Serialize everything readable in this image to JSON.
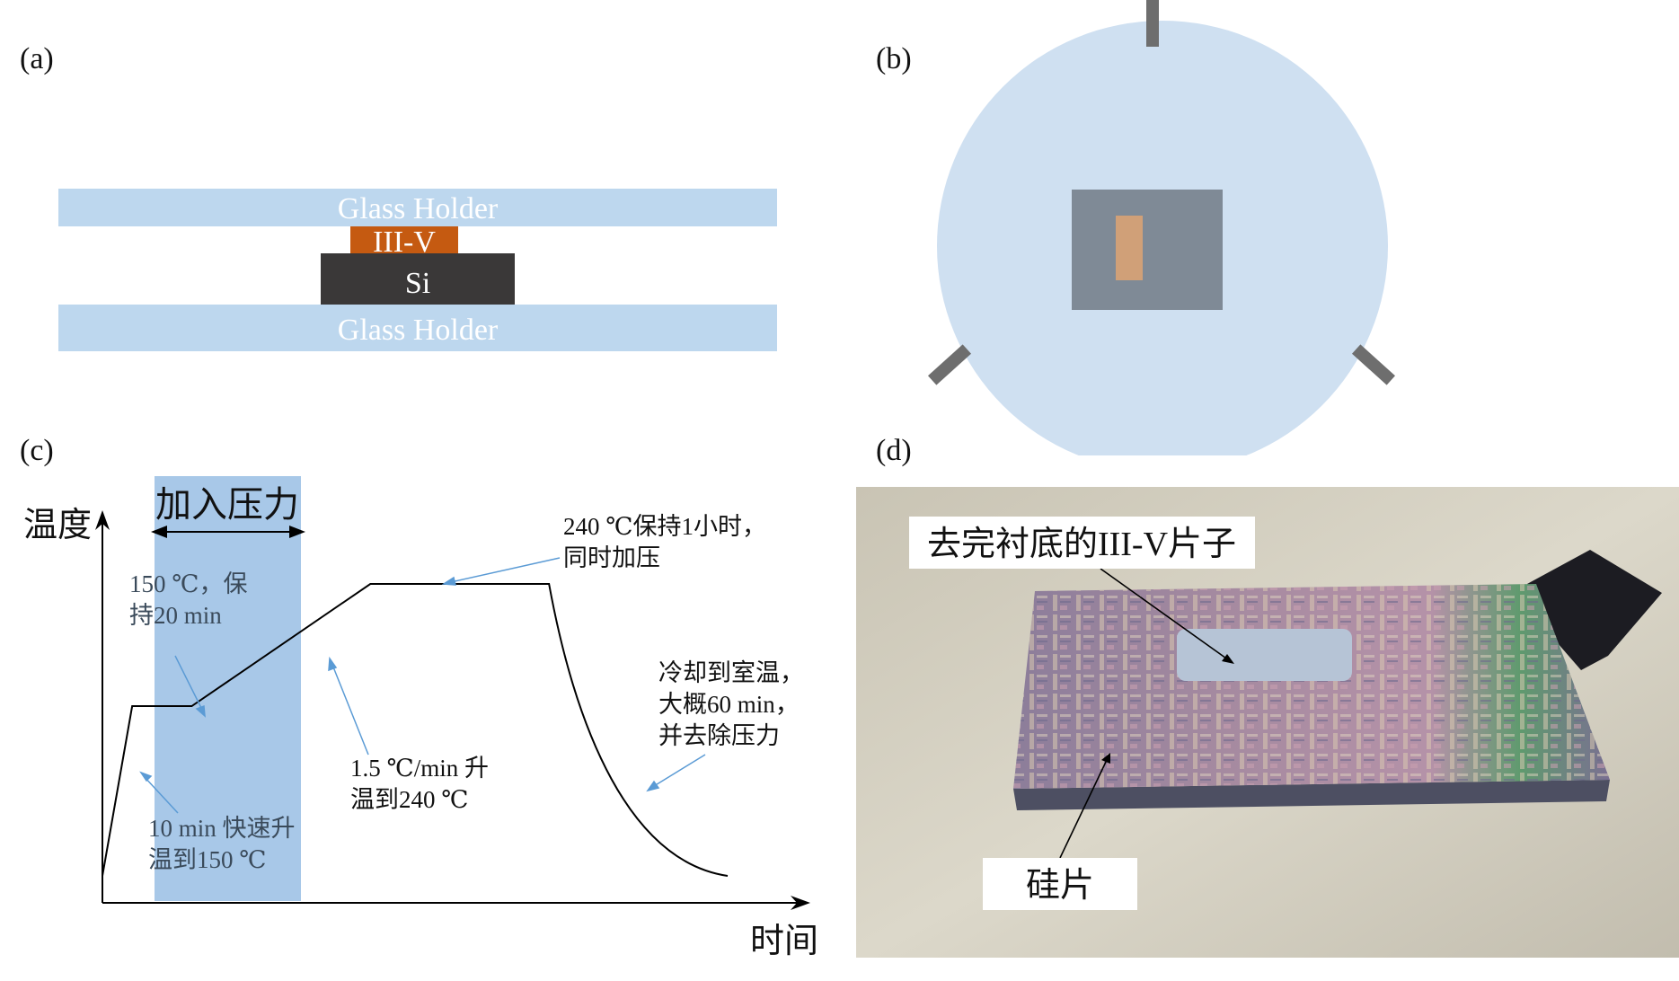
{
  "panel_a": {
    "letter": "(a)",
    "top_holder_label": "Glass Holder",
    "iii_v_label": "III-V",
    "si_label": "Si",
    "bottom_holder_label": "Glass Holder"
  },
  "panel_b": {
    "letter": "(b)"
  },
  "panel_c": {
    "letter": "(c)",
    "y_axis_label": "温度",
    "x_axis_label": "时间",
    "pressure_label": "加入压力",
    "ann_ramp1": [
      "10 min 快速升",
      "温到150 ℃"
    ],
    "ann_hold150": [
      "150 ℃，保",
      "持20 min"
    ],
    "ann_ramp2": [
      "1.5 ℃/min 升",
      "温到240 ℃"
    ],
    "ann_hold240": [
      "240 ℃保持1小时，",
      "同时加压"
    ],
    "ann_cool": [
      "冷却到室温，",
      "大概60 min，",
      "并去除压力"
    ],
    "chart_data": {
      "type": "line",
      "xlabel": "时间",
      "ylabel": "温度",
      "x_unit": "min",
      "y_unit": "℃",
      "points": [
        {
          "t": 0,
          "T": 25
        },
        {
          "t": 10,
          "T": 150
        },
        {
          "t": 30,
          "T": 150
        },
        {
          "t": 90,
          "T": 240
        },
        {
          "t": 150,
          "T": 240
        },
        {
          "t": 210,
          "T": 25
        }
      ],
      "shaded_region": {
        "label": "加入压力",
        "color": "#a8c8e8"
      },
      "colors": {
        "line": "#000000",
        "annotation_arrow": "#5b9bd5"
      }
    }
  },
  "panel_d": {
    "letter": "(d)",
    "label_iii_v": "去完衬底的III-V片子",
    "label_si": "硅片"
  },
  "colors": {
    "glass": "#bdd7ee",
    "iii_v": "#c55a11",
    "si": "#3a3838",
    "chuck": "#cfe0f1",
    "pin": "#6e6e6e",
    "sample_gray": "#7f8a96",
    "sample_copper": "#d0a078"
  }
}
